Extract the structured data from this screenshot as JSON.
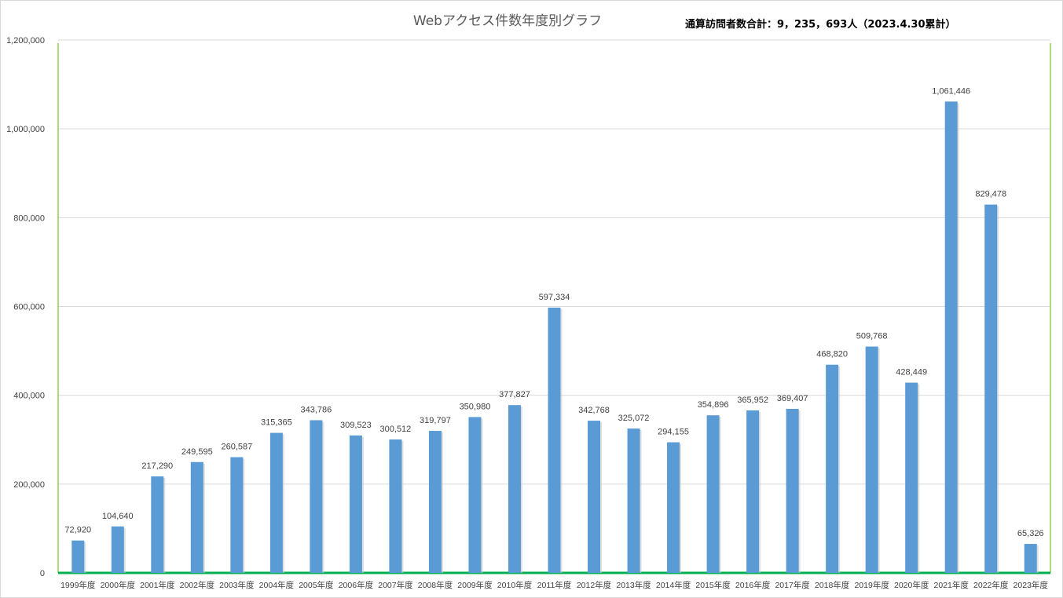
{
  "chart_data": {
    "type": "bar",
    "title": "Webアクセス件数年度別グラフ",
    "annotation": "通算訪問者数合計：9，235，693人（2023.4.30累計）",
    "xlabel": "",
    "ylabel": "",
    "ylim": [
      0,
      1200000
    ],
    "yticks": [
      0,
      200000,
      400000,
      600000,
      800000,
      1000000,
      1200000
    ],
    "ytick_labels": [
      "0",
      "200,000",
      "400,000",
      "600,000",
      "800,000",
      "1,000,000",
      "1,200,000"
    ],
    "grid": true,
    "legend": "none",
    "bar_color": "#5B9BD5",
    "plot_border_color": "#92D050",
    "categories": [
      "1999年度",
      "2000年度",
      "2001年度",
      "2002年度",
      "2003年度",
      "2004年度",
      "2005年度",
      "2006年度",
      "2007年度",
      "2008年度",
      "2009年度",
      "2010年度",
      "2011年度",
      "2012年度",
      "2013年度",
      "2014年度",
      "2015年度",
      "2016年度",
      "2017年度",
      "2018年度",
      "2019年度",
      "2020年度",
      "2021年度",
      "2022年度",
      "2023年度"
    ],
    "values": [
      72920,
      104640,
      217290,
      249595,
      260587,
      315365,
      343786,
      309523,
      300512,
      319797,
      350980,
      377827,
      597334,
      342768,
      325072,
      294155,
      354896,
      365952,
      369407,
      468820,
      509768,
      428449,
      1061446,
      829478,
      65326
    ],
    "value_labels": [
      "72,920",
      "104,640",
      "217,290",
      "249,595",
      "260,587",
      "315,365",
      "343,786",
      "309,523",
      "300,512",
      "319,797",
      "350,980",
      "377,827",
      "597,334",
      "342,768",
      "325,072",
      "294,155",
      "354,896",
      "365,952",
      "369,407",
      "468,820",
      "509,768",
      "428,449",
      "1,061,446",
      "829,478",
      "65,326"
    ]
  }
}
